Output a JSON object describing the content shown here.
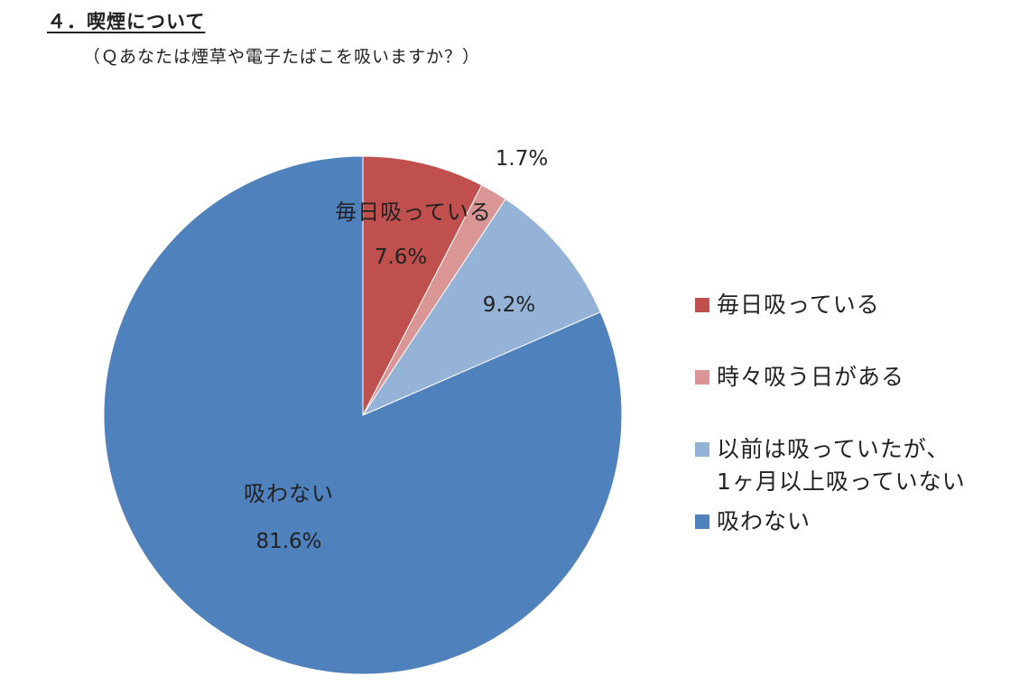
{
  "heading": "４．喫煙について",
  "subheading": "（Ｑあなたは煙草や電子たばこを吸いますか？）",
  "chart_data": {
    "type": "pie",
    "start_angle_deg": 0,
    "direction": "clockwise",
    "legend_position": "right",
    "slices": [
      {
        "label": "毎日吸っている",
        "legend_label": "毎日吸っている",
        "value": 7.6,
        "value_label": "7.6%",
        "color": "#C0504D",
        "label_color": "#222222"
      },
      {
        "label": "",
        "legend_label": "時々吸う日がある",
        "value": 1.7,
        "value_label": "1.7%",
        "color": "#D99694",
        "label_color": "#222222"
      },
      {
        "label": "",
        "legend_label": "以前は吸っていたが、\n1ヶ月以上吸っていない",
        "value": 9.2,
        "value_label": "9.2%",
        "color": "#95B3D7",
        "label_color": "#222222"
      },
      {
        "label": "吸わない",
        "legend_label": "吸わない",
        "value": 81.6,
        "value_label": "81.6%",
        "color": "#4F81BD",
        "label_color": "#222222"
      }
    ]
  }
}
